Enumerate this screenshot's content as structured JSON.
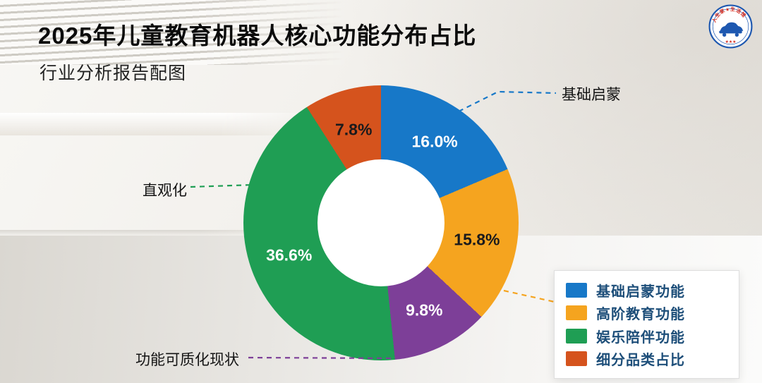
{
  "header": {
    "title": "2025年儿童教育机器人核心功能分布占比",
    "subtitle": "行业分析报告配图"
  },
  "logo": {
    "text": "人生家★生活馆",
    "bottom_text": "★★★"
  },
  "chart_data": {
    "type": "pie",
    "donut": true,
    "title": "2025年儿童教育机器人核心功能分布占比",
    "start_angle_deg": 0,
    "direction": "clockwise",
    "slices": [
      {
        "name": "基础启蒙功能",
        "value": 16.0,
        "display": "16.0%",
        "color": "#1778c8",
        "text_color": "#ffffff"
      },
      {
        "name": "高阶教育功能",
        "value": 15.8,
        "display": "15.8%",
        "color": "#f5a41f",
        "text_color": "#1a1a1c"
      },
      {
        "name": "功能可质化现状",
        "value": 9.8,
        "display": "9.8%",
        "color": "#7d3f98",
        "text_color": "#ffffff"
      },
      {
        "name": "娱乐陪伴功能",
        "value": 36.6,
        "display": "36.6%",
        "color": "#1f9e54",
        "text_color": "#ffffff"
      },
      {
        "name": "细分品类占比",
        "value": 7.8,
        "display": "7.8%",
        "color": "#d5531d",
        "text_color": "#1a1a1c"
      }
    ],
    "callouts": [
      {
        "text": "基础启蒙",
        "slice_index": 0
      },
      {
        "text": "直观化",
        "slice_index": 3
      },
      {
        "text": "功能可质化现状",
        "slice_index": 2
      }
    ],
    "legend": {
      "position": "bottom-right",
      "items": [
        {
          "label": "基础启蒙功能",
          "color": "#1778c8"
        },
        {
          "label": "高阶教育功能",
          "color": "#f5a41f"
        },
        {
          "label": "娱乐陪伴功能",
          "color": "#1f9e54"
        },
        {
          "label": "细分品类占比",
          "color": "#d5531d"
        }
      ]
    }
  }
}
